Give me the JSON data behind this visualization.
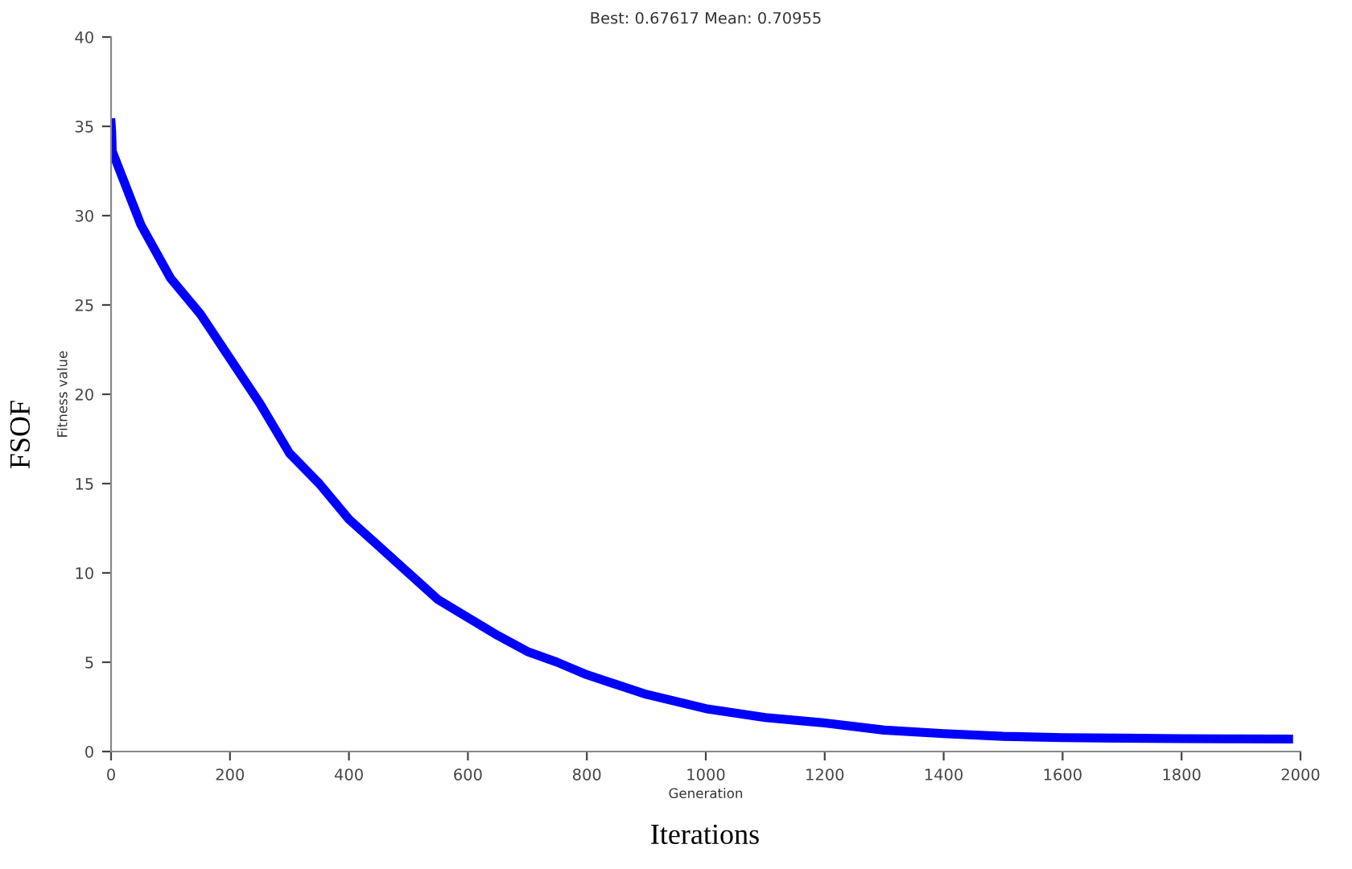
{
  "chart_data": {
    "type": "line",
    "title": "Best: 0.67617 Mean: 0.70955",
    "xlabel": "Generation",
    "ylabel": "Fitness value",
    "annotations": [
      "FSOF",
      "Iterations"
    ],
    "series": [
      {
        "color": "#0000ff",
        "x": [
          0,
          1,
          2,
          50,
          100,
          150,
          200,
          250,
          300,
          350,
          400,
          450,
          500,
          550,
          600,
          650,
          700,
          750,
          800,
          900,
          1000,
          1100,
          1200,
          1300,
          1400,
          1500,
          1600,
          1700,
          1800,
          1900,
          1980
        ],
        "values": [
          35.2,
          34.7,
          33.6,
          29.5,
          26.5,
          24.5,
          22,
          19.5,
          16.7,
          15,
          13,
          11.5,
          10,
          8.5,
          7.5,
          6.5,
          5.6,
          5,
          4.3,
          3.2,
          2.4,
          1.9,
          1.6,
          1.2,
          1.0,
          0.85,
          0.78,
          0.75,
          0.72,
          0.71,
          0.7
        ]
      }
    ],
    "xlim": [
      0,
      2000
    ],
    "xticks": [
      0,
      200,
      400,
      600,
      800,
      1000,
      1200,
      1400,
      1600,
      1800,
      2000
    ],
    "ylim": [
      0,
      40
    ],
    "yticks": [
      0,
      5,
      10,
      15,
      20,
      25,
      30,
      35,
      40
    ],
    "grid": false,
    "line_style": "solid",
    "marker": "none"
  }
}
